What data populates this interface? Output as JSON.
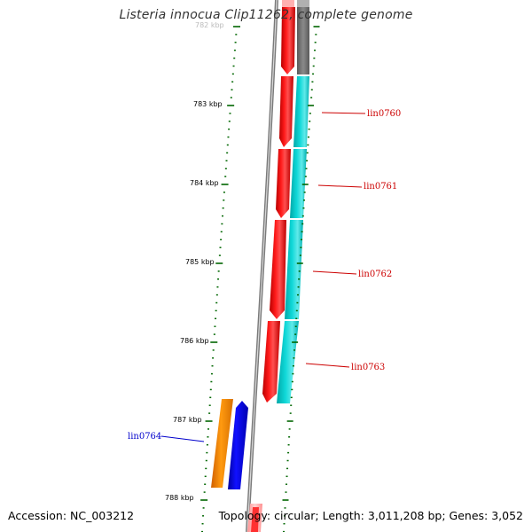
{
  "title": "Listeria innocua Clip11262, complete genome",
  "footer": {
    "accession": "Accession: NC_003212",
    "summary": "Topology: circular; Length: 3,011,208 bp; Genes: 3,052"
  },
  "scale_labels": [
    "782 kbp",
    "783 kbp",
    "784 kbp",
    "785 kbp",
    "786 kbp",
    "787 kbp",
    "788 kbp"
  ],
  "genes": [
    {
      "id": "lin0760",
      "strand": "forward",
      "color": "#cc0000"
    },
    {
      "id": "lin0761",
      "strand": "forward",
      "color": "#cc0000"
    },
    {
      "id": "lin0762",
      "strand": "forward",
      "color": "#cc0000"
    },
    {
      "id": "lin0763",
      "strand": "forward",
      "color": "#cc0000"
    },
    {
      "id": "lin0764",
      "strand": "reverse",
      "color": "#0000cc"
    }
  ],
  "colors": {
    "cds_forward": "#ff0000",
    "cds_reverse": "#0000ff",
    "feature_cyan": "#00cccc",
    "feature_orange": "#ff8800",
    "backbone": "#808080",
    "ticks": "#006600",
    "forward_label": "#cc0000",
    "reverse_label": "#0000cc"
  }
}
